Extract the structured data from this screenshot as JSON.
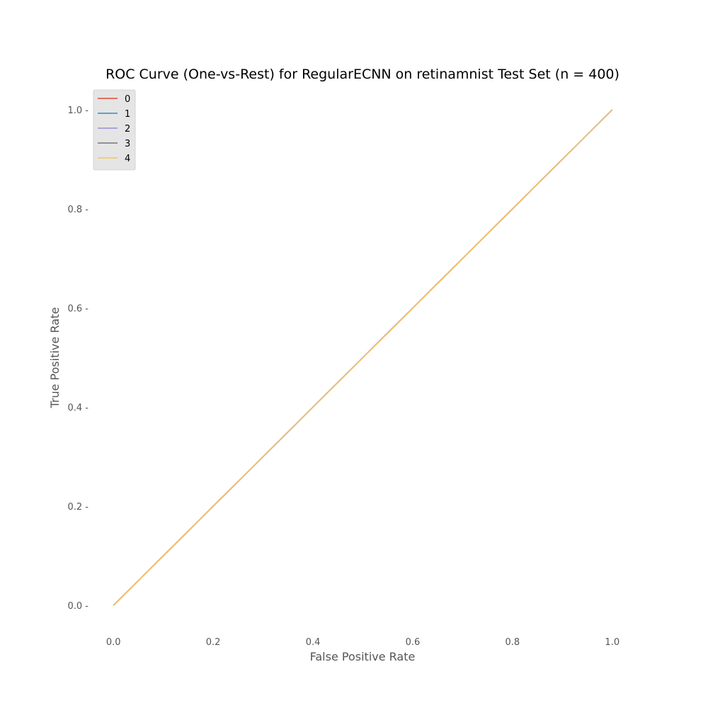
{
  "chart_data": {
    "type": "line",
    "title": "ROC Curve (One-vs-Rest) for RegularECNN on retinamnist Test Set (n = 400)",
    "xlabel": "False Positive Rate",
    "ylabel": "True Positive Rate",
    "xlim": [
      -0.05,
      1.05
    ],
    "ylim": [
      -0.05,
      1.05
    ],
    "xticks": [
      0.0,
      0.2,
      0.4,
      0.6,
      0.8,
      1.0
    ],
    "yticks": [
      0.0,
      0.2,
      0.4,
      0.6,
      0.8,
      1.0
    ],
    "xtick_labels": [
      "0.0",
      "0.2",
      "0.4",
      "0.6",
      "0.8",
      "1.0"
    ],
    "ytick_labels": [
      "0.0 -",
      "0.2 -",
      "0.4 -",
      "0.6 -",
      "0.8 -",
      "1.0 -"
    ],
    "grid": false,
    "legend_position": "top-left",
    "series": [
      {
        "name": "0",
        "color": "#e24a33",
        "x": [
          0.0,
          1.0
        ],
        "y": [
          0.0,
          1.0
        ]
      },
      {
        "name": "1",
        "color": "#348abd",
        "x": [
          0.0,
          1.0
        ],
        "y": [
          0.0,
          1.0
        ]
      },
      {
        "name": "2",
        "color": "#988ed5",
        "x": [
          0.0,
          1.0
        ],
        "y": [
          0.0,
          1.0
        ]
      },
      {
        "name": "3",
        "color": "#777777",
        "x": [
          0.0,
          1.0
        ],
        "y": [
          0.0,
          1.0
        ]
      },
      {
        "name": "4",
        "color": "#fbc15e",
        "x": [
          0.0,
          1.0
        ],
        "y": [
          0.0,
          1.0
        ]
      }
    ]
  }
}
